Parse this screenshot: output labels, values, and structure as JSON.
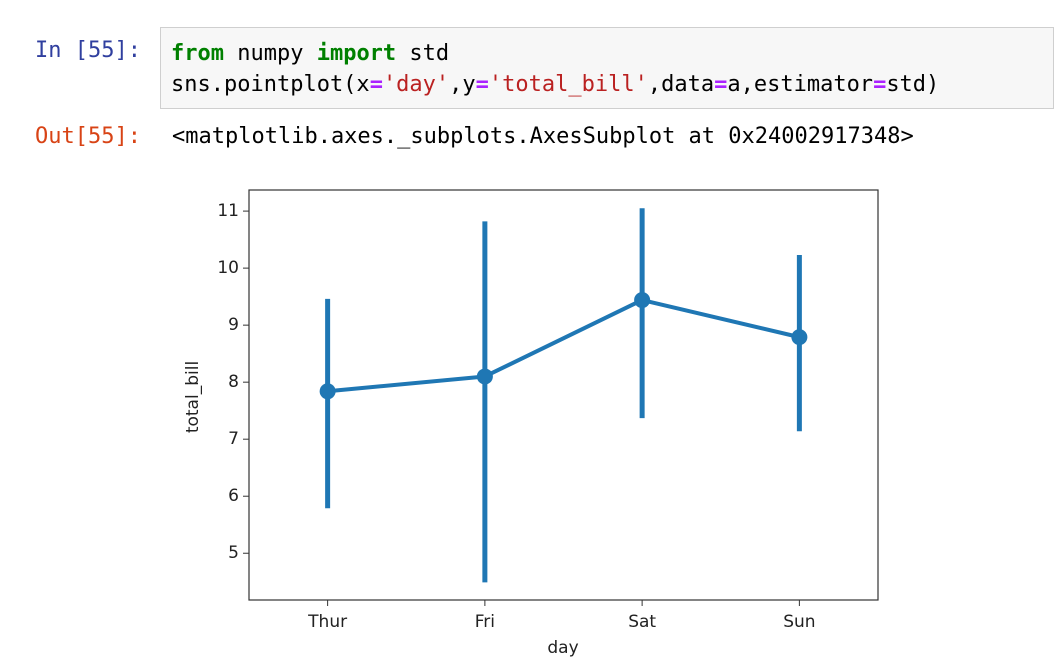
{
  "input": {
    "prompt": "In [55]:",
    "code": [
      [
        {
          "text": "from",
          "color": "#008000",
          "bold": true
        },
        {
          "text": " numpy ",
          "color": "#000000",
          "bold": false
        },
        {
          "text": "import",
          "color": "#008000",
          "bold": true
        },
        {
          "text": " std",
          "color": "#000000",
          "bold": false
        }
      ],
      [
        {
          "text": "sns.pointplot(x",
          "color": "#000000",
          "bold": false
        },
        {
          "text": "=",
          "color": "#aa22ff",
          "bold": true
        },
        {
          "text": "'day'",
          "color": "#ba2121",
          "bold": false
        },
        {
          "text": ",y",
          "color": "#000000",
          "bold": false
        },
        {
          "text": "=",
          "color": "#aa22ff",
          "bold": true
        },
        {
          "text": "'total_bill'",
          "color": "#ba2121",
          "bold": false
        },
        {
          "text": ",data",
          "color": "#000000",
          "bold": false
        },
        {
          "text": "=",
          "color": "#aa22ff",
          "bold": true
        },
        {
          "text": "a,estimator",
          "color": "#000000",
          "bold": false
        },
        {
          "text": "=",
          "color": "#aa22ff",
          "bold": true
        },
        {
          "text": "std)",
          "color": "#000000",
          "bold": false
        }
      ]
    ]
  },
  "output": {
    "prompt": "Out[55]:",
    "text": "<matplotlib.axes._subplots.AxesSubplot at 0x24002917348>"
  },
  "chart_data": {
    "type": "pointplot",
    "x_label": "day",
    "y_label": "total_bill",
    "categories": [
      "Thur",
      "Fri",
      "Sat",
      "Sun"
    ],
    "series": [
      {
        "color": "#1f77b4",
        "values": [
          7.84,
          8.1,
          9.44,
          8.79
        ],
        "lower": [
          5.79,
          4.49,
          7.37,
          7.14
        ],
        "upper": [
          9.46,
          10.82,
          11.05,
          10.23
        ]
      }
    ],
    "ylim": [
      4.18,
      11.37
    ],
    "yticks": [
      5,
      6,
      7,
      8,
      9,
      10,
      11
    ]
  }
}
